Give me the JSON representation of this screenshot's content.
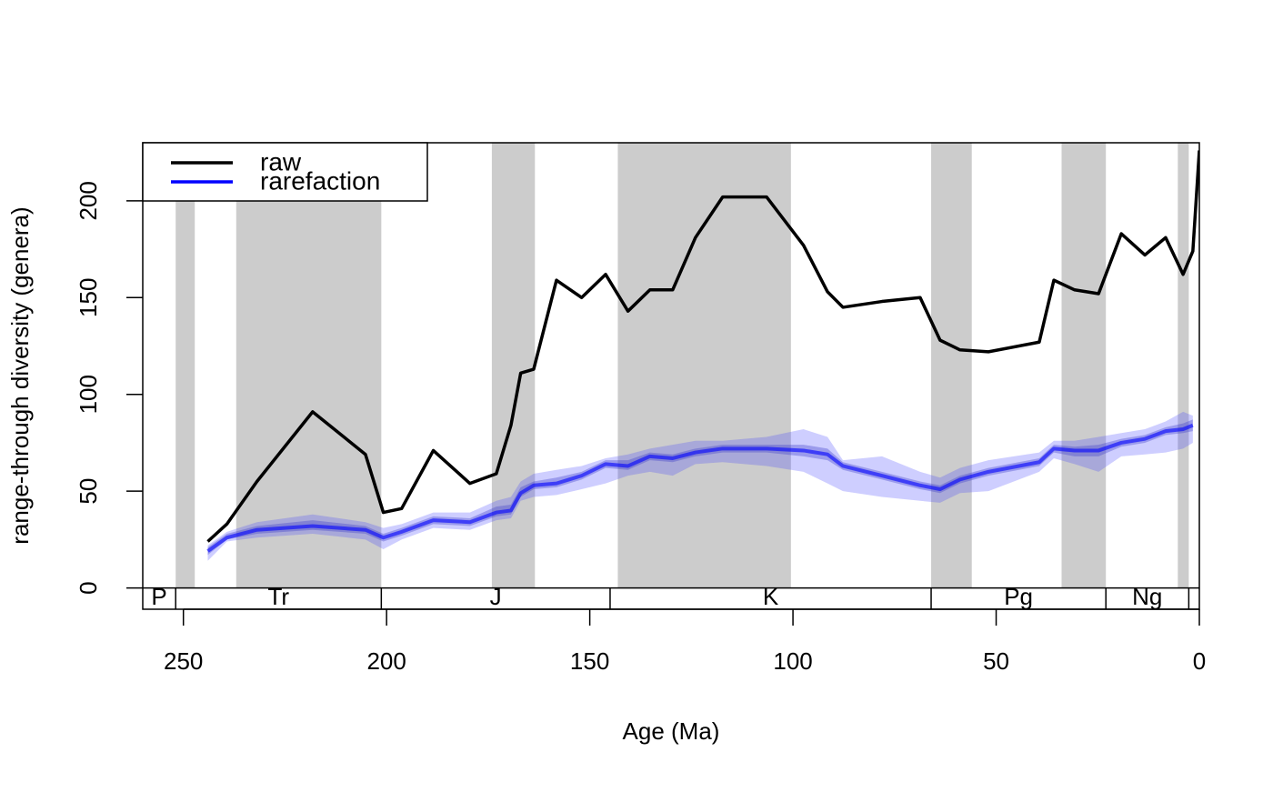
{
  "chart_data": {
    "type": "line",
    "xlabel": "Age (Ma)",
    "ylabel": "range-through diversity (genera)",
    "xlim": [
      260,
      0
    ],
    "ylim": [
      -11,
      230
    ],
    "xticks": [
      250,
      200,
      150,
      100,
      50,
      0
    ],
    "yticks": [
      0,
      50,
      100,
      150,
      200
    ],
    "legend": "top-left",
    "timescale": {
      "band_color": "#cccccc",
      "bands": [
        [
          251.9,
          247.2
        ],
        [
          237,
          201.3
        ],
        [
          174.1,
          163.5
        ],
        [
          143.1,
          100.5
        ],
        [
          66,
          56
        ],
        [
          33.9,
          23
        ],
        [
          5.3,
          2.6
        ]
      ],
      "periods": [
        {
          "label": "P",
          "start": 299,
          "end": 251.9
        },
        {
          "label": "Tr",
          "start": 251.9,
          "end": 201.3
        },
        {
          "label": "J",
          "start": 201.3,
          "end": 145
        },
        {
          "label": "K",
          "start": 145,
          "end": 66
        },
        {
          "label": "Pg",
          "start": 66,
          "end": 23
        },
        {
          "label": "Ng",
          "start": 23,
          "end": 2.6
        }
      ]
    },
    "x": [
      244,
      239.3,
      231.9,
      218.2,
      205.2,
      200.8,
      196.3,
      188.5,
      179.5,
      173,
      169.4,
      167,
      163.8,
      158.2,
      152,
      146.1,
      140.6,
      135.2,
      129.6,
      124,
      117.3,
      106.5,
      97.4,
      91.5,
      87.7,
      78.1,
      68.7,
      63.8,
      58.9,
      51.9,
      39.4,
      35.8,
      30.7,
      24.8,
      19.2,
      13.4,
      8.3,
      4,
      1.6,
      0
    ],
    "series": [
      {
        "name": "raw",
        "color": "#000000",
        "values": [
          24,
          33,
          55,
          91,
          69,
          39,
          41,
          71,
          54,
          59,
          84,
          111,
          113,
          159,
          150,
          162,
          143,
          154,
          154,
          181,
          202,
          202,
          177,
          153,
          145,
          148,
          150,
          128,
          123,
          122,
          127,
          159,
          154,
          152,
          183,
          172,
          181,
          162,
          174,
          226
        ]
      },
      {
        "name": "rarefaction",
        "color": "#0000ff",
        "values": [
          19,
          26,
          30,
          32,
          30,
          26,
          29,
          35,
          34,
          39,
          40,
          49,
          53,
          54,
          58,
          64,
          63,
          68,
          67,
          70,
          72,
          72,
          71,
          69,
          63,
          58,
          53,
          51,
          56,
          60,
          65,
          72,
          71,
          71,
          75,
          77,
          81,
          82,
          84,
          null
        ],
        "bands": [
          {
            "color": "rgba(60,60,255,0.25)",
            "lower": [
              14,
              24,
              26,
              28,
              25,
              20,
              25,
              31,
              30,
              35,
              36,
              45,
              47,
              48,
              51,
              54,
              58,
              60,
              58,
              64,
              65,
              63,
              60,
              54,
              50,
              47,
              45,
              44,
              49,
              50,
              60,
              67,
              64,
              60,
              68,
              69,
              70,
              72,
              75,
              null
            ],
            "upper": [
              22,
              29,
              34,
              38,
              34,
              31,
              33,
              39,
              39,
              45,
              47,
              55,
              59,
              61,
              63,
              67,
              69,
              72,
              74,
              76,
              76,
              78,
              82,
              78,
              66,
              68,
              60,
              57,
              62,
              66,
              70,
              76,
              76,
              78,
              80,
              82,
              86,
              91,
              89,
              null
            ]
          },
          {
            "color": "rgba(60,60,200,0.35)",
            "lower": [
              17,
              25,
              28,
              30,
              28,
              24,
              27,
              33,
              32,
              37,
              38,
              47,
              51,
              52,
              56,
              62,
              61,
              66,
              65,
              68,
              70,
              70,
              68,
              66,
              61,
              56,
              51,
              49,
              54,
              58,
              63,
              70,
              68,
              68,
              73,
              75,
              79,
              80,
              81,
              null
            ],
            "upper": [
              21,
              28,
              32,
              35,
              32,
              28,
              31,
              37,
              36,
              42,
              43,
              52,
              55,
              57,
              60,
              66,
              66,
              70,
              69,
              72,
              74,
              74,
              74,
              72,
              65,
              60,
              55,
              53,
              58,
              62,
              67,
              74,
              73,
              74,
              77,
              79,
              83,
              85,
              87,
              null
            ]
          }
        ]
      }
    ]
  }
}
